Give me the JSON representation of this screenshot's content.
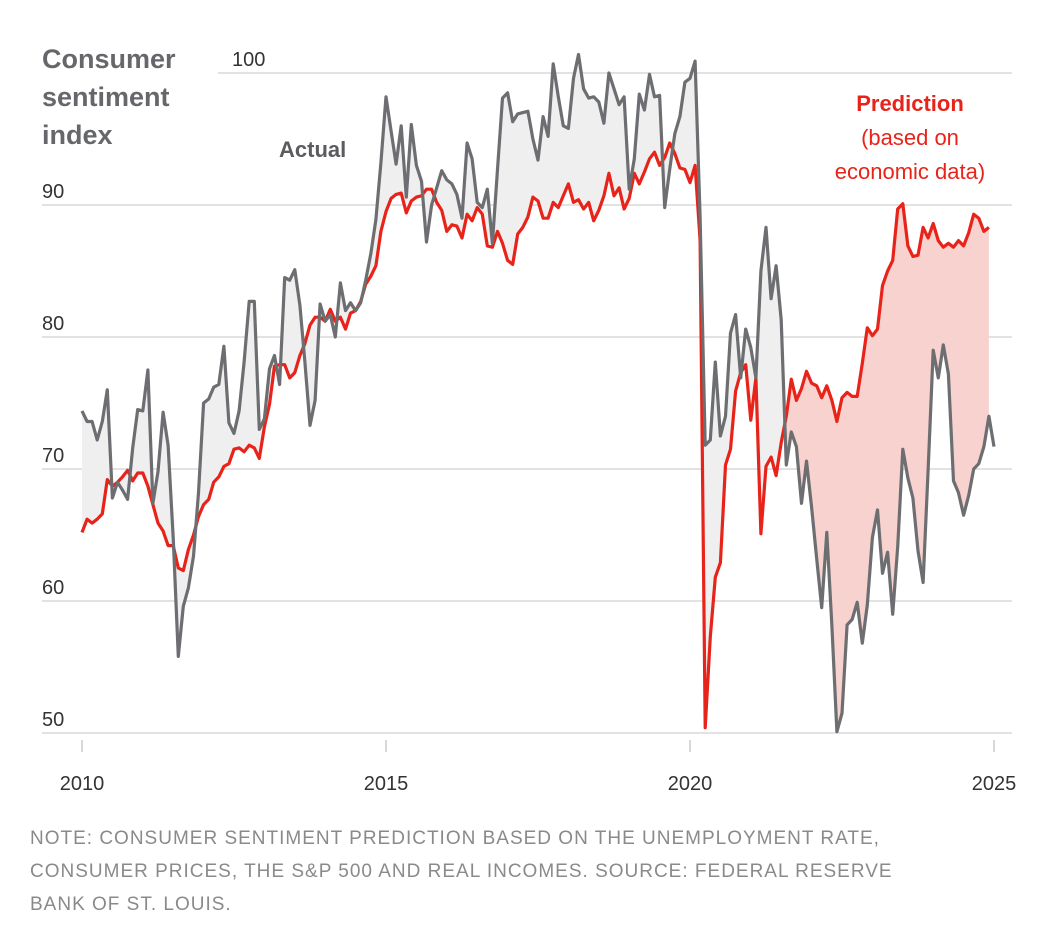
{
  "chart_data": {
    "type": "line",
    "title": "Consumer sentiment index",
    "xlabel": "",
    "ylabel": "Consumer sentiment index",
    "ylim": [
      50,
      100
    ],
    "xlim": [
      2010,
      2025
    ],
    "yticks": [
      "100",
      "90",
      "80",
      "70",
      "60",
      "50"
    ],
    "ytick_values": [
      100,
      90,
      80,
      70,
      60,
      50
    ],
    "xticks": [
      "2010",
      "2015",
      "2020",
      "2025"
    ],
    "xtick_values": [
      2010,
      2015,
      2020,
      2025
    ],
    "grid": true,
    "x_start": "2010-01",
    "x_frequency": "monthly",
    "shading": {
      "actual_above_color": "#efefef",
      "prediction_above_color": "#f8d2ce",
      "prediction_highlight_from_month_index": 138
    },
    "series": [
      {
        "name": "Actual",
        "color": "#6d6e71",
        "values": [
          74.4,
          73.6,
          73.6,
          72.2,
          73.6,
          76.0,
          67.8,
          69.0,
          68.4,
          67.7,
          71.6,
          74.5,
          74.4,
          77.5,
          67.4,
          69.8,
          74.3,
          71.8,
          64.8,
          55.8,
          59.6,
          61.0,
          63.4,
          68.2,
          75.0,
          75.3,
          76.2,
          76.4,
          79.3,
          73.5,
          72.7,
          74.4,
          78.1,
          82.7,
          82.7,
          73.0,
          73.8,
          77.6,
          78.6,
          76.4,
          84.5,
          84.3,
          85.1,
          82.4,
          78.1,
          73.3,
          75.2,
          82.5,
          81.2,
          81.7,
          80.0,
          84.1,
          82.0,
          82.6,
          82.0,
          82.6,
          84.3,
          86.3,
          88.9,
          93.2,
          98.2,
          95.6,
          93.1,
          96.0,
          90.6,
          96.1,
          93.0,
          91.8,
          87.2,
          90.0,
          91.3,
          92.6,
          91.9,
          91.6,
          90.8,
          89.0,
          94.7,
          93.5,
          90.2,
          89.8,
          91.2,
          87.1,
          92.7,
          98.1,
          98.5,
          96.3,
          96.9,
          97.0,
          97.1,
          95.0,
          93.4,
          96.7,
          95.2,
          100.7,
          98.2,
          96.0,
          95.8,
          99.6,
          101.4,
          98.8,
          98.1,
          98.2,
          97.8,
          96.2,
          100.0,
          98.8,
          97.6,
          98.2,
          91.2,
          93.5,
          98.4,
          97.2,
          99.9,
          98.2,
          98.3,
          89.8,
          92.7,
          95.4,
          96.7,
          99.3,
          99.6,
          100.9,
          89.1,
          71.8,
          72.2,
          78.1,
          72.5,
          74.0,
          80.3,
          81.7,
          76.9,
          80.6,
          79.2,
          76.9,
          85.0,
          88.3,
          82.9,
          85.4,
          81.3,
          70.3,
          72.8,
          71.7,
          67.4,
          70.6,
          67.1,
          63.2,
          59.5,
          65.2,
          58.1,
          50.1,
          51.5,
          58.2,
          58.6,
          59.9,
          56.8,
          59.7,
          64.8,
          66.9,
          62.1,
          63.7,
          59.0,
          64.1,
          71.5,
          69.3,
          67.8,
          63.8,
          61.4,
          69.9,
          79.0,
          76.9,
          79.4,
          77.2,
          69.1,
          68.2,
          66.5,
          68.0,
          70.0,
          70.4,
          71.7,
          74.0,
          71.7
        ]
      },
      {
        "name": "Prediction (based on economic data)",
        "color": "#e8231a",
        "values": [
          65.2,
          66.2,
          65.9,
          66.2,
          66.6,
          69.2,
          68.7,
          69.0,
          69.4,
          69.9,
          69.1,
          69.7,
          69.7,
          68.7,
          67.3,
          65.9,
          65.3,
          64.2,
          64.2,
          62.5,
          62.3,
          63.9,
          65.0,
          66.4,
          67.3,
          67.7,
          69.0,
          69.4,
          70.2,
          70.4,
          71.5,
          71.6,
          71.3,
          71.8,
          71.6,
          70.8,
          73.2,
          74.9,
          77.8,
          77.9,
          77.9,
          76.9,
          77.3,
          78.6,
          79.5,
          80.9,
          81.5,
          81.5,
          81.2,
          82.1,
          81.2,
          81.5,
          80.6,
          81.8,
          82.0,
          82.7,
          84.0,
          84.6,
          85.4,
          88.0,
          89.5,
          90.5,
          90.8,
          90.9,
          89.4,
          90.3,
          90.6,
          90.7,
          91.2,
          91.2,
          90.2,
          89.6,
          88.0,
          88.5,
          88.4,
          87.5,
          89.3,
          88.8,
          89.8,
          89.3,
          86.9,
          86.8,
          88.0,
          87.1,
          85.8,
          85.5,
          87.8,
          88.3,
          89.1,
          90.6,
          90.3,
          89.0,
          89.0,
          90.2,
          89.8,
          90.7,
          91.6,
          90.2,
          90.4,
          89.7,
          90.2,
          88.8,
          89.6,
          90.7,
          92.4,
          90.7,
          91.3,
          89.7,
          90.5,
          92.4,
          91.6,
          92.5,
          93.5,
          94.0,
          93.0,
          93.6,
          94.7,
          93.9,
          92.8,
          92.7,
          91.7,
          93.0,
          87.3,
          50.4,
          57.3,
          61.8,
          62.9,
          70.3,
          71.5,
          75.9,
          77.3,
          77.9,
          73.7,
          76.9,
          65.1,
          70.2,
          70.9,
          69.5,
          72.0,
          74.0,
          76.8,
          75.2,
          76.1,
          77.4,
          76.5,
          76.3,
          75.4,
          76.3,
          75.2,
          73.6,
          75.4,
          75.8,
          75.5,
          75.5,
          78.0,
          80.7,
          80.1,
          80.6,
          83.9,
          85.0,
          85.8,
          89.7,
          90.1,
          86.9,
          86.1,
          86.2,
          88.3,
          87.5,
          88.6,
          87.3,
          86.8,
          87.1,
          86.8,
          87.3,
          86.9,
          87.9,
          89.3,
          89.0,
          88.0,
          88.3
        ]
      }
    ],
    "annotations": {
      "actual_label": "Actual",
      "prediction_label": "Prediction",
      "prediction_sublabel_1": "(based on",
      "prediction_sublabel_2": "economic data)"
    }
  },
  "header": {
    "title_line1": "Consumer",
    "title_line2": "sentiment",
    "title_line3": "index"
  },
  "note": {
    "line1": "NOTE: CONSUMER SENTIMENT PREDICTION BASED ON THE UNEMPLOYMENT RATE,",
    "line2": "CONSUMER PRICES, THE S&P 500 AND REAL INCOMES. SOURCE: FEDERAL RESERVE",
    "line3": "BANK OF ST. LOUIS."
  }
}
